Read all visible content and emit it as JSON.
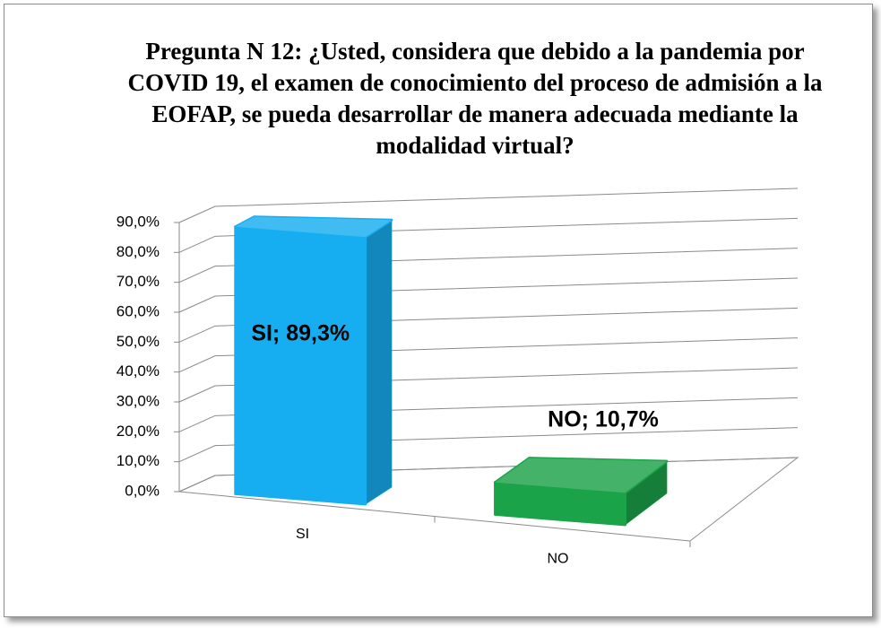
{
  "chart_data": {
    "type": "bar3d",
    "title": "Pregunta N 12: ¿Usted, considera que debido a la pandemia por COVID 19, el examen de conocimiento del proceso de admisión a la EOFAP, se pueda desarrollar de manera adecuada mediante la modalidad virtual?",
    "categories": [
      "SI",
      "NO"
    ],
    "series": [
      {
        "name": "SI",
        "color": "#16aef0",
        "values": [
          89.3,
          null
        ],
        "value_labels": [
          "SI; 89,3%",
          null
        ]
      },
      {
        "name": "NO",
        "color": "#1ba349",
        "values": [
          null,
          10.7
        ],
        "value_labels": [
          null,
          "NO; 10,7%"
        ]
      }
    ],
    "ylim": [
      0,
      90
    ],
    "yticks": [
      {
        "value": 0,
        "label": "0,0%"
      },
      {
        "value": 10,
        "label": "10,0%"
      },
      {
        "value": 20,
        "label": "20,0%"
      },
      {
        "value": 30,
        "label": "30,0%"
      },
      {
        "value": 40,
        "label": "40,0%"
      },
      {
        "value": 50,
        "label": "50,0%"
      },
      {
        "value": 60,
        "label": "60,0%"
      },
      {
        "value": 70,
        "label": "70,0%"
      },
      {
        "value": 80,
        "label": "80,0%"
      },
      {
        "value": 90,
        "label": "90,0%"
      }
    ],
    "grid": true
  }
}
